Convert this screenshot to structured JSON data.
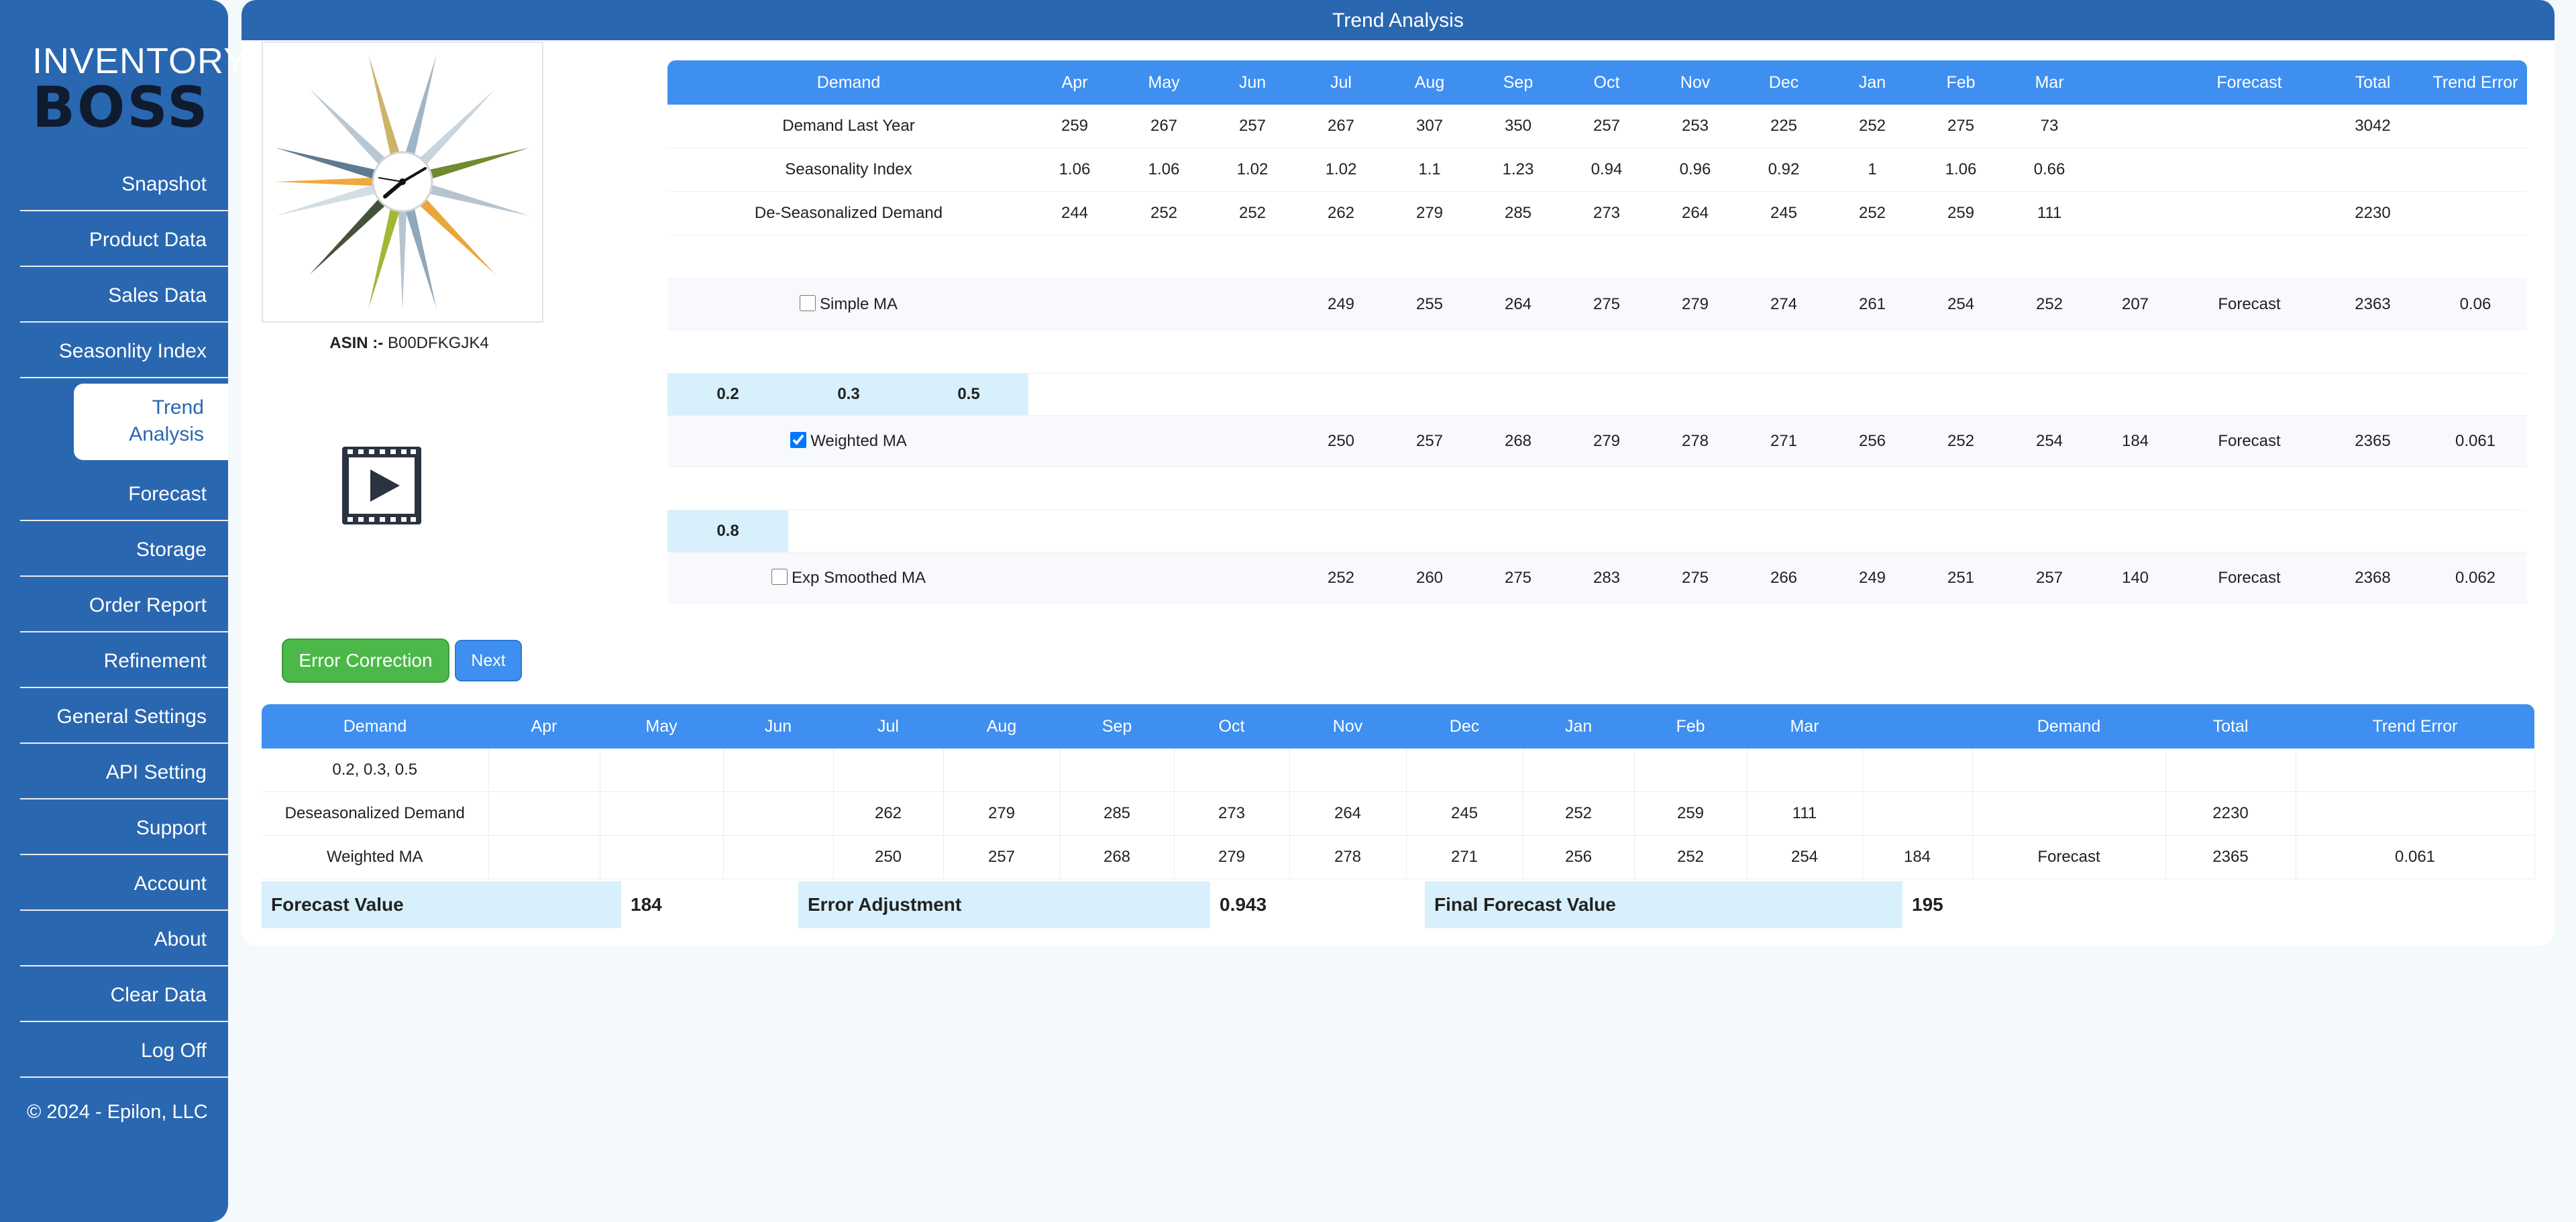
{
  "brand": {
    "line1": "INVENTORY",
    "line2": "BOSS"
  },
  "sidebar": {
    "items": [
      {
        "label": "Snapshot"
      },
      {
        "label": "Product Data"
      },
      {
        "label": "Sales Data"
      },
      {
        "label": "Seasonlity Index"
      },
      {
        "label": "Trend Analysis"
      },
      {
        "label": "Forecast"
      },
      {
        "label": "Storage"
      },
      {
        "label": "Order Report"
      },
      {
        "label": "Refinement"
      },
      {
        "label": "General Settings"
      },
      {
        "label": "API Setting"
      },
      {
        "label": "Support"
      },
      {
        "label": "Account"
      },
      {
        "label": "About"
      },
      {
        "label": "Clear Data"
      },
      {
        "label": "Log Off"
      }
    ],
    "active_index": 4,
    "copyright": "© 2024 - Epilon, LLC"
  },
  "page": {
    "title": "Trend Analysis"
  },
  "product": {
    "asin_label": "ASIN :-",
    "asin_value": "B00DFKGJK4"
  },
  "trend_table": {
    "headers": [
      "Demand",
      "Apr",
      "May",
      "Jun",
      "Jul",
      "Aug",
      "Sep",
      "Oct",
      "Nov",
      "Dec",
      "Jan",
      "Feb",
      "Mar",
      "",
      "Forecast",
      "Total",
      "Trend Error"
    ],
    "demand_last_year": {
      "label": "Demand Last Year",
      "values": [
        "259",
        "267",
        "257",
        "267",
        "307",
        "350",
        "257",
        "253",
        "225",
        "252",
        "275",
        "73"
      ],
      "total": "3042"
    },
    "seasonality_index": {
      "label": "Seasonality Index",
      "values": [
        "1.06",
        "1.06",
        "1.02",
        "1.02",
        "1.1",
        "1.23",
        "0.94",
        "0.96",
        "0.92",
        "1",
        "1.06",
        "0.66"
      ]
    },
    "deseasonalized": {
      "label": "De-Seasonalized Demand",
      "values": [
        "244",
        "252",
        "252",
        "262",
        "279",
        "285",
        "273",
        "264",
        "245",
        "252",
        "259",
        "111"
      ],
      "total": "2230"
    },
    "simple_ma": {
      "label": "Simple MA",
      "checked": false,
      "values": [
        "249",
        "255",
        "264",
        "275",
        "279",
        "274",
        "261",
        "254",
        "252",
        "207"
      ],
      "forecast": "Forecast",
      "total": "2363",
      "trend_error": "0.06"
    },
    "weights": [
      "0.2",
      "0.3",
      "0.5"
    ],
    "weighted_ma": {
      "label": "Weighted MA",
      "checked": true,
      "values": [
        "250",
        "257",
        "268",
        "279",
        "278",
        "271",
        "256",
        "252",
        "254",
        "184"
      ],
      "forecast": "Forecast",
      "total": "2365",
      "trend_error": "0.061"
    },
    "alpha": "0.8",
    "exp_ma": {
      "label": "Exp Smoothed MA",
      "checked": false,
      "values": [
        "252",
        "260",
        "275",
        "283",
        "275",
        "266",
        "249",
        "251",
        "257",
        "140"
      ],
      "forecast": "Forecast",
      "total": "2368",
      "trend_error": "0.062"
    }
  },
  "buttons": {
    "error_correction": "Error Correction",
    "next": "Next"
  },
  "error_table": {
    "headers": [
      "Demand",
      "Apr",
      "May",
      "Jun",
      "Jul",
      "Aug",
      "Sep",
      "Oct",
      "Nov",
      "Dec",
      "Jan",
      "Feb",
      "Mar",
      "",
      "Demand",
      "Total",
      "Trend Error"
    ],
    "row_weights": {
      "label": "0.2, 0.3, 0.5"
    },
    "row_deseasonalized": {
      "label": "Deseasonalized Demand",
      "values": [
        "262",
        "279",
        "285",
        "273",
        "264",
        "245",
        "252",
        "259",
        "111"
      ],
      "total": "2230"
    },
    "row_weighted": {
      "label": "Weighted MA",
      "values": [
        "250",
        "257",
        "268",
        "279",
        "278",
        "271",
        "256",
        "252",
        "254",
        "184"
      ],
      "forecast": "Forecast",
      "total": "2365",
      "trend_error": "0.061"
    }
  },
  "summary": {
    "forecast_value_label": "Forecast Value",
    "forecast_value": "184",
    "error_adjustment_label": "Error Adjustment",
    "error_adjustment": "0.943",
    "final_forecast_label": "Final Forecast Value",
    "final_forecast": "195"
  },
  "colors": {
    "sidebar": "#2a67b1",
    "header": "#3e8ff0",
    "highlight": "#d7f0fb",
    "green_button": "#4cb849"
  }
}
